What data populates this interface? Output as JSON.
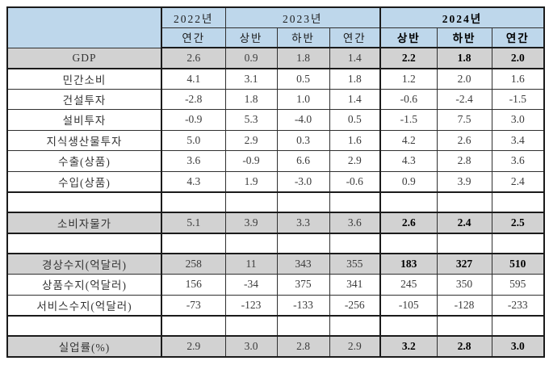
{
  "table": {
    "title_hint": "korean-economic-indicators-table",
    "colors": {
      "header_bg": "#bed7eb",
      "highlight_row_bg": "#d2d2d2",
      "border": "#1b1b1b",
      "text": "#3c3c3c"
    },
    "col_groups": [
      {
        "label": "2022년"
      },
      {
        "label": "2023년"
      },
      {
        "label": "2024년"
      }
    ],
    "sub_headers": [
      "연간",
      "상반",
      "하반",
      "연간",
      "상반",
      "하반",
      "연간"
    ],
    "rows": [
      {
        "label": "GDP",
        "highlight": true,
        "spacer": false,
        "values": [
          "2.6",
          "0.9",
          "1.8",
          "1.4",
          "2.2",
          "1.8",
          "2.0"
        ]
      },
      {
        "label": "민간소비",
        "highlight": false,
        "spacer": false,
        "values": [
          "4.1",
          "3.1",
          "0.5",
          "1.8",
          "1.2",
          "2.0",
          "1.6"
        ]
      },
      {
        "label": "건설투자",
        "highlight": false,
        "spacer": false,
        "values": [
          "-2.8",
          "1.8",
          "1.0",
          "1.4",
          "-0.6",
          "-2.4",
          "-1.5"
        ]
      },
      {
        "label": "설비투자",
        "highlight": false,
        "spacer": false,
        "values": [
          "-0.9",
          "5.3",
          "-4.0",
          "0.5",
          "-1.5",
          "7.5",
          "3.0"
        ]
      },
      {
        "label": "지식생산물투자",
        "highlight": false,
        "spacer": false,
        "values": [
          "5.0",
          "2.9",
          "0.3",
          "1.6",
          "4.2",
          "2.6",
          "3.4"
        ]
      },
      {
        "label": "수출(상품)",
        "highlight": false,
        "spacer": false,
        "values": [
          "3.6",
          "-0.9",
          "6.6",
          "2.9",
          "4.3",
          "2.8",
          "3.6"
        ]
      },
      {
        "label": "수입(상품)",
        "highlight": false,
        "spacer": false,
        "values": [
          "4.3",
          "1.9",
          "-3.0",
          "-0.6",
          "0.9",
          "3.9",
          "2.4"
        ]
      },
      {
        "label": "",
        "highlight": false,
        "spacer": true,
        "values": [
          "",
          "",
          "",
          "",
          "",
          "",
          ""
        ]
      },
      {
        "label": "소비자물가",
        "highlight": true,
        "spacer": false,
        "values": [
          "5.1",
          "3.9",
          "3.3",
          "3.6",
          "2.6",
          "2.4",
          "2.5"
        ]
      },
      {
        "label": "",
        "highlight": false,
        "spacer": true,
        "values": [
          "",
          "",
          "",
          "",
          "",
          "",
          ""
        ]
      },
      {
        "label": "경상수지(억달러)",
        "highlight": true,
        "spacer": false,
        "values": [
          "258",
          "11",
          "343",
          "355",
          "183",
          "327",
          "510"
        ]
      },
      {
        "label": "상품수지(억달러)",
        "highlight": false,
        "spacer": false,
        "values": [
          "156",
          "-34",
          "375",
          "341",
          "245",
          "350",
          "595"
        ]
      },
      {
        "label": "서비스수지(억달러)",
        "highlight": false,
        "spacer": false,
        "values": [
          "-73",
          "-123",
          "-133",
          "-256",
          "-105",
          "-128",
          "-233"
        ]
      },
      {
        "label": "",
        "highlight": false,
        "spacer": true,
        "values": [
          "",
          "",
          "",
          "",
          "",
          "",
          ""
        ]
      },
      {
        "label": "실업률(%)",
        "highlight": true,
        "spacer": false,
        "values": [
          "2.9",
          "3.0",
          "2.8",
          "2.9",
          "3.2",
          "2.8",
          "3.0"
        ]
      }
    ]
  }
}
